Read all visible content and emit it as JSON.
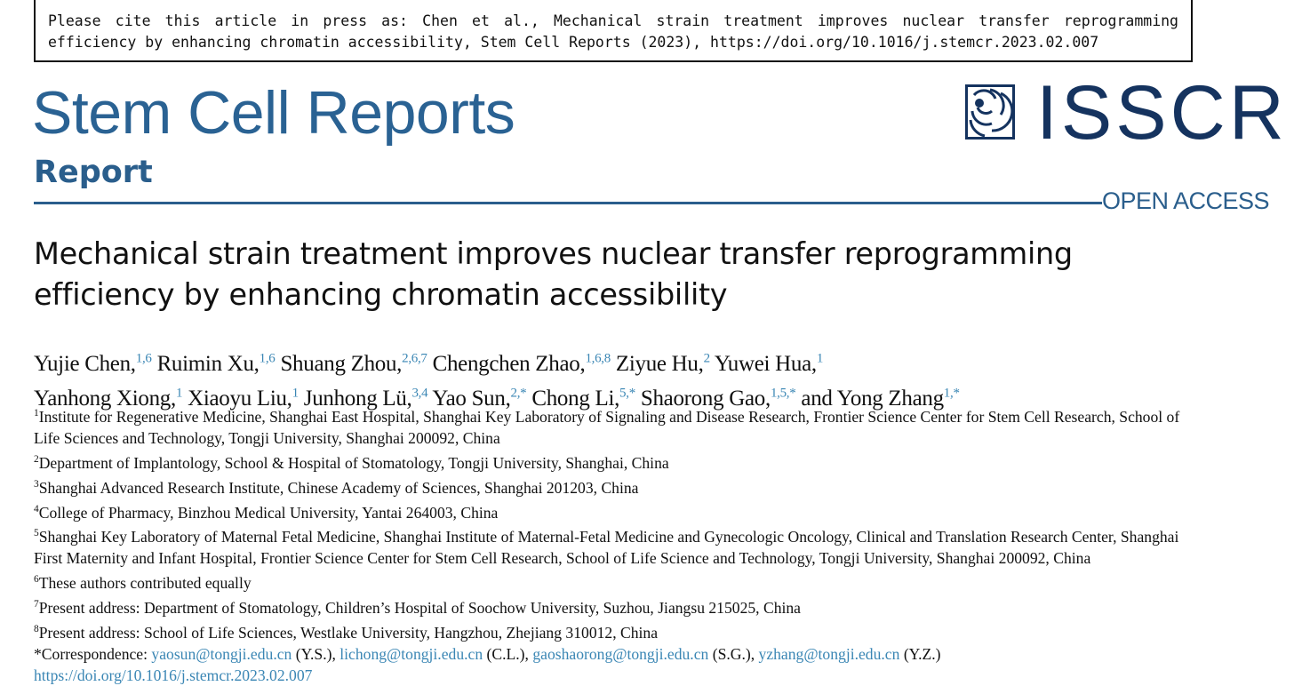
{
  "citation": "Please cite this article in press as: Chen et al., Mechanical strain treatment improves nuclear transfer reprogramming efficiency by enhancing chromatin accessibility, Stem Cell Reports (2023), https://doi.org/10.1016/j.stemcr.2023.02.007",
  "journal": "Stem Cell Reports",
  "article_type": "Report",
  "publisher_logo": "ISSCR",
  "open_access": "OPEN ACCESS",
  "colors": {
    "brand": "#2a5e8c",
    "link": "#3a86b4",
    "logo": "#15335f"
  },
  "title_lines": [
    "Mechanical strain treatment improves nuclear transfer reprogramming",
    "efficiency by enhancing chromatin accessibility"
  ],
  "authors": [
    {
      "name": "Yujie Chen,",
      "sup": "1,6"
    },
    {
      "name": "Ruimin Xu,",
      "sup": "1,6"
    },
    {
      "name": "Shuang Zhou,",
      "sup": "2,6,7"
    },
    {
      "name": "Chengchen Zhao,",
      "sup": "1,6,8"
    },
    {
      "name": "Ziyue Hu,",
      "sup": "2"
    },
    {
      "name": "Yuwei Hua,",
      "sup": "1",
      "break": true
    },
    {
      "name": "Yanhong Xiong,",
      "sup": "1"
    },
    {
      "name": "Xiaoyu Liu,",
      "sup": "1"
    },
    {
      "name": "Junhong Lü,",
      "sup": "3,4"
    },
    {
      "name": "Yao Sun,",
      "sup": "2,*"
    },
    {
      "name": "Chong Li,",
      "sup": "5,*"
    },
    {
      "name": "Shaorong Gao,",
      "sup": "1,5,*"
    },
    {
      "name": "and Yong Zhang",
      "sup": "1,*"
    }
  ],
  "affiliations": [
    {
      "num": "1",
      "text": "Institute for Regenerative Medicine, Shanghai East Hospital, Shanghai Key Laboratory of Signaling and Disease Research, Frontier Science Center for Stem Cell Research, School of Life Sciences and Technology, Tongji University, Shanghai 200092, China"
    },
    {
      "num": "2",
      "text": "Department of Implantology, School & Hospital of Stomatology, Tongji University, Shanghai, China"
    },
    {
      "num": "3",
      "text": "Shanghai Advanced Research Institute, Chinese Academy of Sciences, Shanghai 201203, China"
    },
    {
      "num": "4",
      "text": "College of Pharmacy, Binzhou Medical University, Yantai 264003, China"
    },
    {
      "num": "5",
      "text": "Shanghai Key Laboratory of Maternal Fetal Medicine, Shanghai Institute of Maternal-Fetal Medicine and Gynecologic Oncology, Clinical and Translation Research Center, Shanghai First Maternity and Infant Hospital, Frontier Science Center for Stem Cell Research, School of Life Science and Technology, Tongji University, Shanghai 200092, China"
    },
    {
      "num": "6",
      "text": "These authors contributed equally"
    },
    {
      "num": "7",
      "text": "Present address: Department of Stomatology, Children’s Hospital of Soochow University, Suzhou, Jiangsu 215025, China"
    },
    {
      "num": "8",
      "text": "Present address: School of Life Sciences, Westlake University, Hangzhou, Zhejiang 310012, China"
    }
  ],
  "correspondence": {
    "label": "*Correspondence:",
    "contacts": [
      {
        "email": "yaosun@tongji.edu.cn",
        "initials": "(Y.S.),"
      },
      {
        "email": "lichong@tongji.edu.cn",
        "initials": "(C.L.),"
      },
      {
        "email": "gaoshaorong@tongji.edu.cn",
        "initials": "(S.G.),"
      },
      {
        "email": "yzhang@tongji.edu.cn",
        "initials": "(Y.Z.)"
      }
    ]
  },
  "doi": "https://doi.org/10.1016/j.stemcr.2023.02.007"
}
